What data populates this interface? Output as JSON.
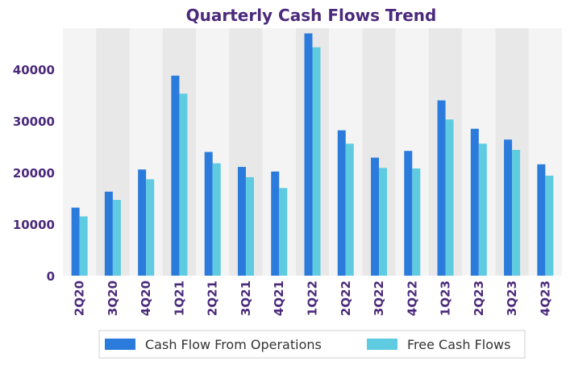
{
  "chart_data": {
    "type": "bar",
    "title": "Quarterly Cash Flows Trend",
    "xlabel": "",
    "ylabel": "",
    "categories": [
      "2Q20",
      "3Q20",
      "4Q20",
      "1Q21",
      "2Q21",
      "3Q21",
      "4Q21",
      "1Q22",
      "2Q22",
      "3Q22",
      "4Q22",
      "1Q23",
      "2Q23",
      "3Q23",
      "4Q23"
    ],
    "series": [
      {
        "name": "Cash Flow From Operations",
        "color": "#2b7bdc",
        "values": [
          13200,
          16300,
          20600,
          38800,
          24000,
          21100,
          20200,
          47000,
          28200,
          22900,
          24200,
          34000,
          28500,
          26400,
          21600
        ]
      },
      {
        "name": "Free Cash Flows",
        "color": "#5ecbe0",
        "values": [
          11500,
          14700,
          18700,
          35300,
          21800,
          19100,
          17000,
          44300,
          25600,
          20900,
          20800,
          30300,
          25600,
          24400,
          19400
        ]
      }
    ],
    "ylim": [
      0,
      48000
    ],
    "yticks": [
      0,
      10000,
      20000,
      30000,
      40000
    ],
    "grid": false,
    "alternating_band_colors": [
      "#f4f4f4",
      "#e8e8e8"
    ],
    "legend_position": "bottom",
    "title_color": "#4b2a7b",
    "tick_label_color": "#4b2a7b"
  }
}
